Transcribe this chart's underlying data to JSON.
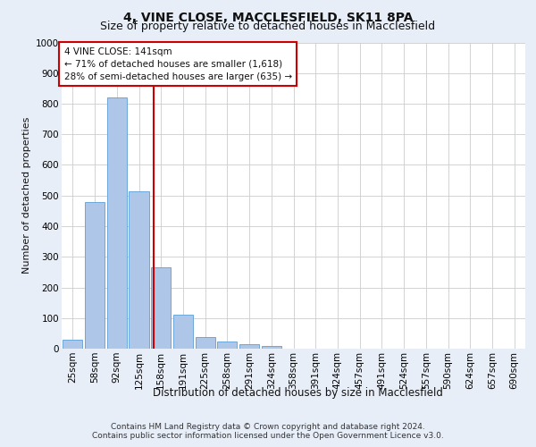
{
  "title1": "4, VINE CLOSE, MACCLESFIELD, SK11 8PA",
  "title2": "Size of property relative to detached houses in Macclesfield",
  "xlabel": "Distribution of detached houses by size in Macclesfield",
  "ylabel": "Number of detached properties",
  "footnote1": "Contains HM Land Registry data © Crown copyright and database right 2024.",
  "footnote2": "Contains public sector information licensed under the Open Government Licence v3.0.",
  "annotation_line1": "4 VINE CLOSE: 141sqm",
  "annotation_line2": "← 71% of detached houses are smaller (1,618)",
  "annotation_line3": "28% of semi-detached houses are larger (635) →",
  "bar_labels": [
    "25sqm",
    "58sqm",
    "92sqm",
    "125sqm",
    "158sqm",
    "191sqm",
    "225sqm",
    "258sqm",
    "291sqm",
    "324sqm",
    "358sqm",
    "391sqm",
    "424sqm",
    "457sqm",
    "491sqm",
    "524sqm",
    "557sqm",
    "590sqm",
    "624sqm",
    "657sqm",
    "690sqm"
  ],
  "bar_values": [
    28,
    480,
    820,
    515,
    265,
    110,
    38,
    22,
    15,
    8,
    0,
    0,
    0,
    0,
    0,
    0,
    0,
    0,
    0,
    0,
    0
  ],
  "bar_color": "#aec6e8",
  "bar_edge_color": "#5a9fd4",
  "vline_x": 3.67,
  "vline_color": "#cc0000",
  "ylim": [
    0,
    1000
  ],
  "yticks": [
    0,
    100,
    200,
    300,
    400,
    500,
    600,
    700,
    800,
    900,
    1000
  ],
  "bg_color": "#e8eef8",
  "plot_bg_color": "#ffffff",
  "annotation_box_color": "#ffffff",
  "annotation_box_edge": "#cc0000",
  "title1_fontsize": 10,
  "title2_fontsize": 9,
  "ylabel_fontsize": 8,
  "xlabel_fontsize": 8.5,
  "tick_fontsize": 7.5,
  "annotation_fontsize": 7.5,
  "footnote_fontsize": 6.5
}
